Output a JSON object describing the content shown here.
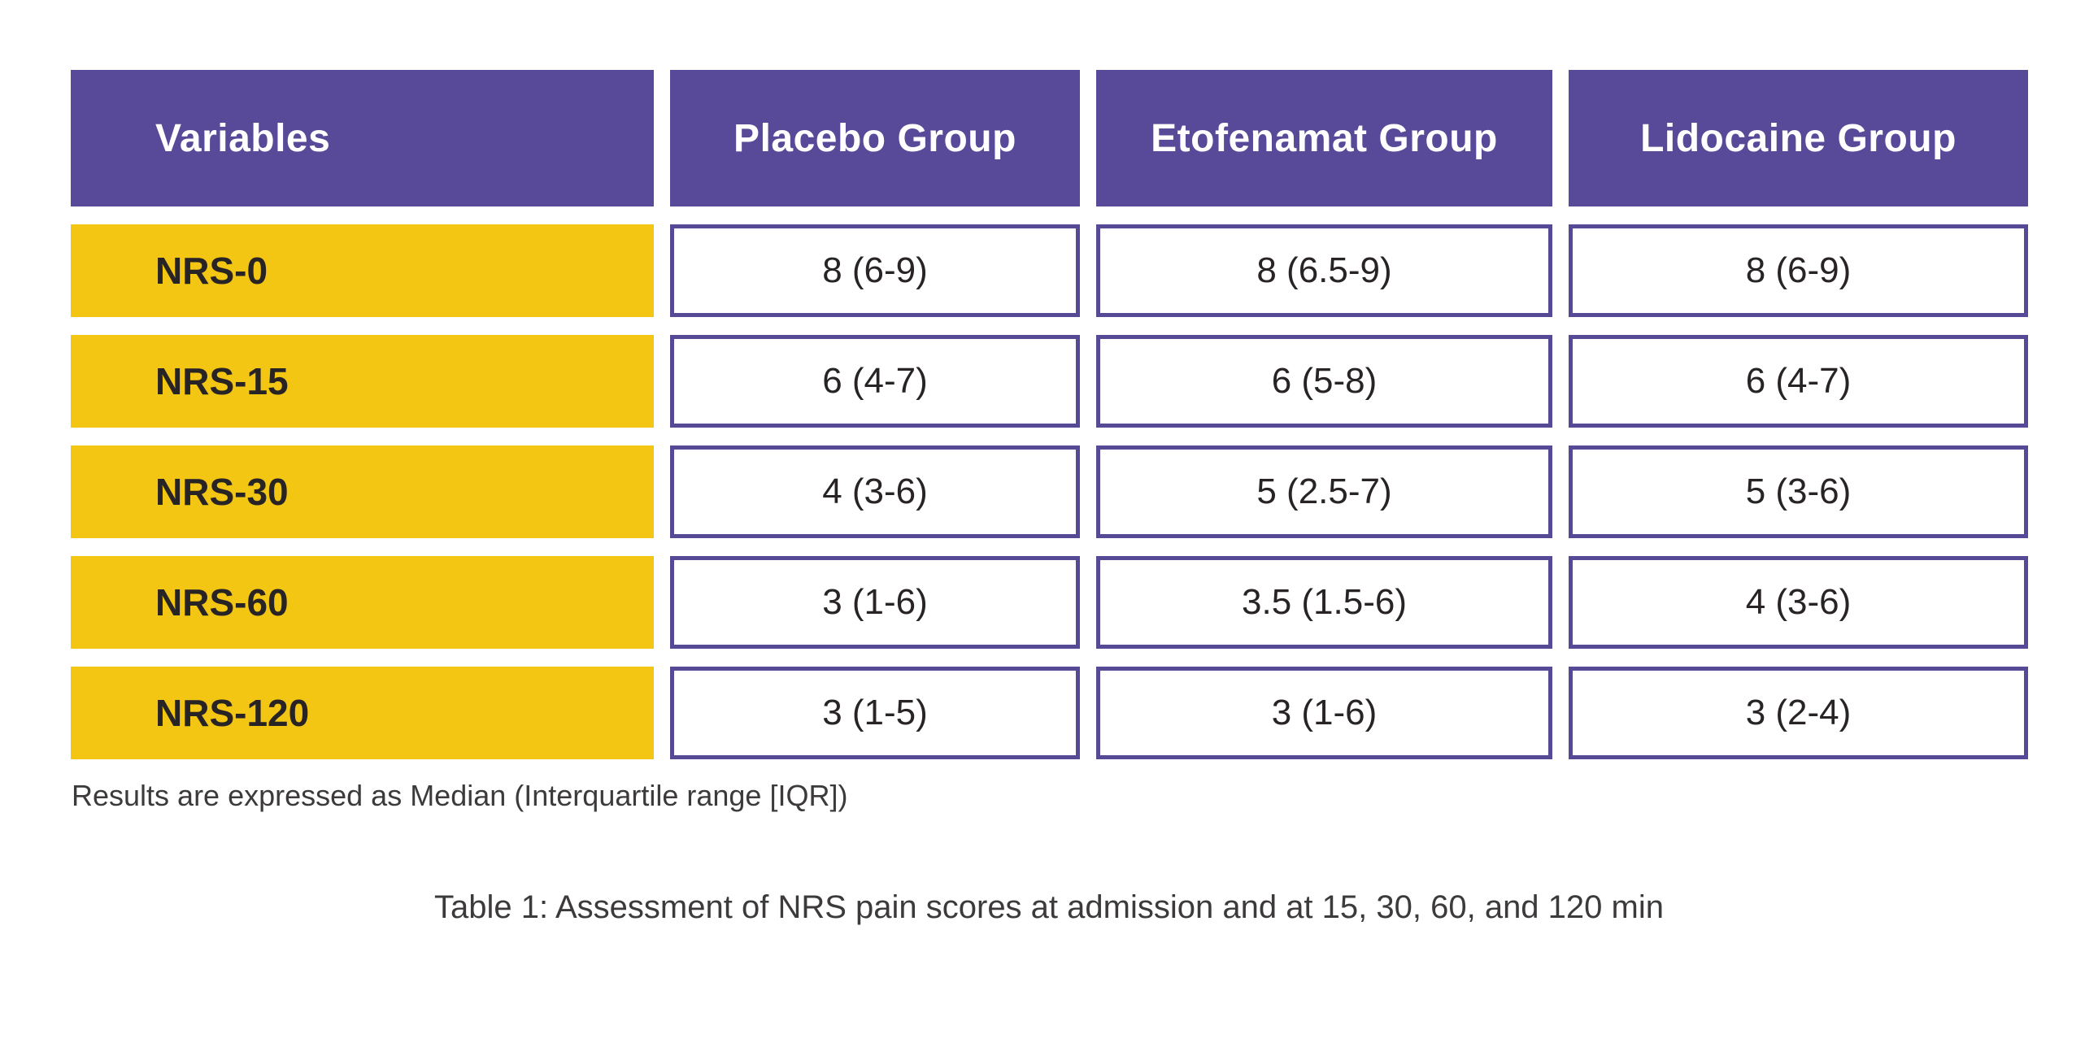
{
  "chart_data": {
    "type": "table",
    "columns": [
      "Variables",
      "Placebo Group",
      "Etofenamat Group",
      "Lidocaine Group"
    ],
    "rows": [
      [
        "NRS-0",
        "8 (6-9)",
        "8 (6.5-9)",
        "8 (6-9)"
      ],
      [
        "NRS-15",
        "6 (4-7)",
        "6 (5-8)",
        "6 (4-7)"
      ],
      [
        "NRS-30",
        "4 (3-6)",
        "5 (2.5-7)",
        "5 (3-6)"
      ],
      [
        "NRS-60",
        "3 (1-6)",
        "3.5 (1.5-6)",
        "4 (3-6)"
      ],
      [
        "NRS-120",
        "3 (1-5)",
        "3 (1-6)",
        "3 (2-4)"
      ]
    ],
    "footnote": "Results are expressed as Median (Interquartile range [IQR])",
    "caption": "Table 1: Assessment of NRS pain scores at admission and at 15, 30, 60, and 120 min"
  },
  "colors": {
    "header_background": "#584A99",
    "row_label_background": "#F2C613",
    "cell_border": "#564A97",
    "header_text": "#ffffff",
    "body_text": "#282324"
  }
}
